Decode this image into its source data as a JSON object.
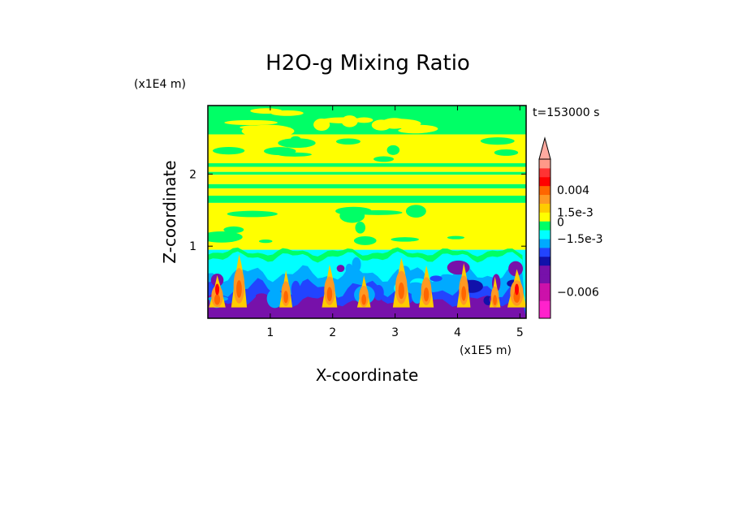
{
  "chart_data": {
    "type": "heatmap",
    "title": "H2O-g Mixing Ratio",
    "xlabel": "X-coordinate",
    "ylabel": "Z-coordinate",
    "x_units": "(x1E5 m)",
    "y_units": "(x1E4 m)",
    "time_label": "t=153000 s",
    "xlim": [
      0,
      5.1
    ],
    "ylim": [
      0,
      2.95
    ],
    "x_ticks": [
      {
        "value": 1,
        "label": "1"
      },
      {
        "value": 2,
        "label": "2"
      },
      {
        "value": 3,
        "label": "3"
      },
      {
        "value": 4,
        "label": "4"
      },
      {
        "value": 5,
        "label": "5"
      }
    ],
    "y_ticks": [
      {
        "value": 1,
        "label": "1"
      },
      {
        "value": 2,
        "label": "2"
      }
    ],
    "colorbar": {
      "levels_bottom_to_top": [
        "#ff22cc",
        "#ff22cc",
        "#cc11aa",
        "#cc11aa",
        "#7711aa",
        "#7711aa",
        "#1111aa",
        "#2244ff",
        "#00aaff",
        "#00ffff",
        "#00ff66",
        "#ffff00",
        "#ffcc00",
        "#ff9922",
        "#ff6600",
        "#ff0000",
        "#ff3333",
        "#ff9988"
      ],
      "tick_labels": [
        {
          "level": 14.5,
          "label": "0.004"
        },
        {
          "level": 12,
          "label": "1.5e-3"
        },
        {
          "level": 10.9,
          "label": "0"
        },
        {
          "level": 9,
          "label": "−1.5e-3"
        },
        {
          "level": 3,
          "label": "−0.006"
        }
      ]
    },
    "bands": [
      {
        "z_from": 2.95,
        "z_to": 2.55,
        "field": "green",
        "features": "yellow patches"
      },
      {
        "z_from": 2.55,
        "z_to": 2.15,
        "field": "yellow",
        "features": "green patches"
      },
      {
        "z_from": 2.15,
        "z_to": 1.6,
        "field": "stripes",
        "features": "alternating yellow and green strips"
      },
      {
        "z_from": 1.6,
        "z_to": 0.95,
        "field": "yellow",
        "features": "green blobs"
      },
      {
        "z_from": 0.95,
        "z_to": 0.0,
        "field": "turbulent",
        "features": "cyan, blue and purple plumes with orange-red cores"
      }
    ],
    "plume_centers_x": [
      0.15,
      0.5,
      1.25,
      1.95,
      2.5,
      3.1,
      3.5,
      4.1,
      4.6,
      4.95
    ]
  }
}
